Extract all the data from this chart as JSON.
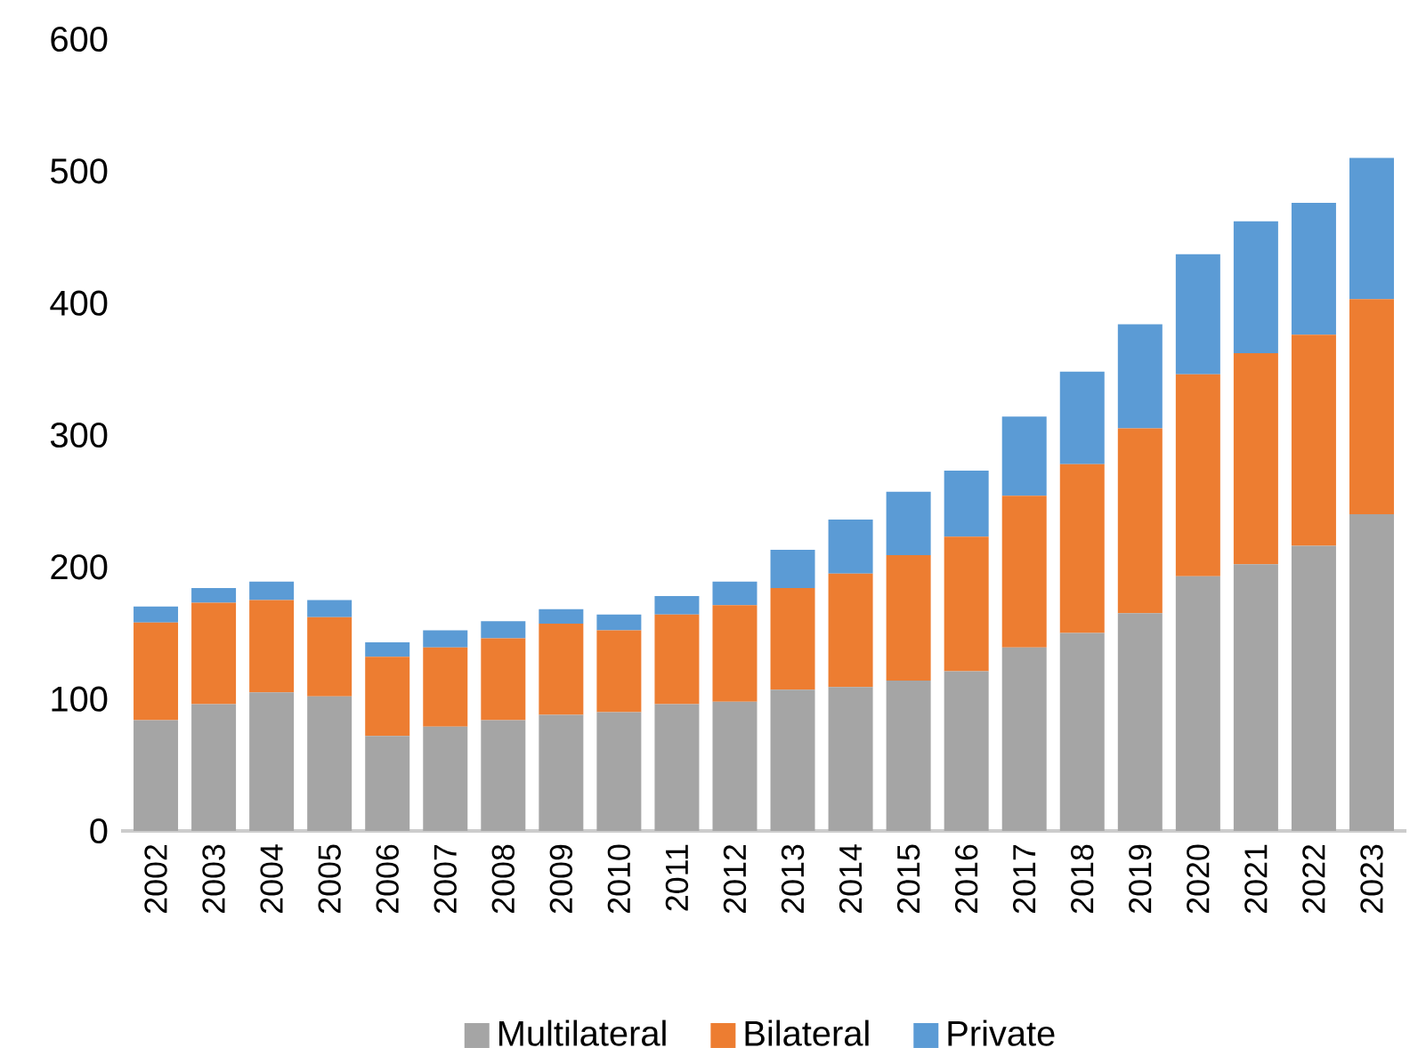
{
  "chart_data": {
    "type": "bar",
    "stacked": true,
    "categories": [
      "2002",
      "2003",
      "2004",
      "2005",
      "2006",
      "2007",
      "2008",
      "2009",
      "2010",
      "2011",
      "2012",
      "2013",
      "2014",
      "2015",
      "2016",
      "2017",
      "2018",
      "2019",
      "2020",
      "2021",
      "2022",
      "2023"
    ],
    "series": [
      {
        "name": "Multilateral",
        "color": "#a5a5a5",
        "values": [
          84,
          96,
          105,
          102,
          72,
          79,
          84,
          88,
          90,
          96,
          98,
          107,
          109,
          114,
          121,
          139,
          150,
          165,
          193,
          202,
          216,
          240
        ]
      },
      {
        "name": "Bilateral",
        "color": "#ed7d31",
        "values": [
          74,
          77,
          70,
          60,
          60,
          60,
          62,
          69,
          62,
          68,
          73,
          77,
          86,
          95,
          102,
          115,
          128,
          140,
          153,
          160,
          160,
          163
        ]
      },
      {
        "name": "Private",
        "color": "#5b9bd5",
        "values": [
          12,
          11,
          14,
          13,
          11,
          13,
          13,
          11,
          12,
          14,
          18,
          29,
          41,
          48,
          50,
          60,
          70,
          79,
          91,
          100,
          100,
          107
        ]
      }
    ],
    "ylim": [
      0,
      600
    ],
    "yticks": [
      0,
      100,
      200,
      300,
      400,
      500,
      600
    ],
    "legend": "bottom"
  }
}
